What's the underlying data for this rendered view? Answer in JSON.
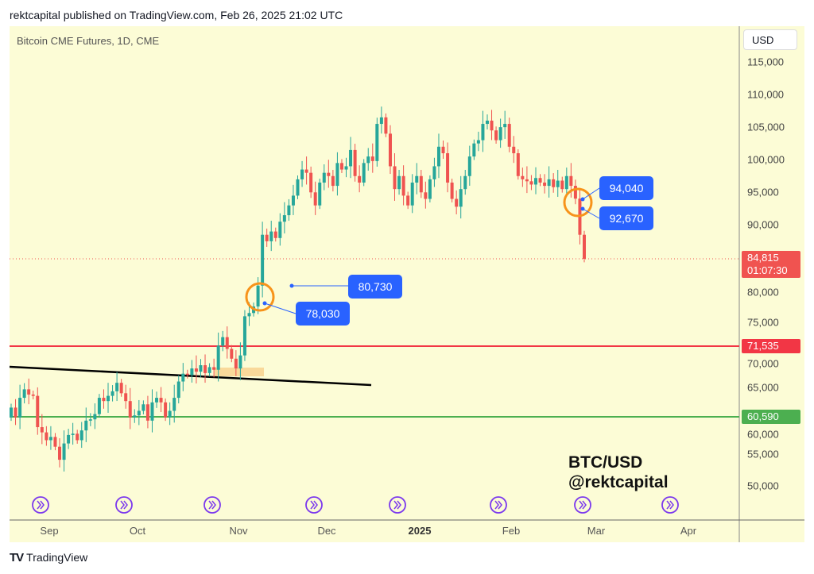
{
  "header": {
    "published": "rektcapital published on TradingView.com, Feb 26, 2025 21:02 UTC"
  },
  "symbol": "Bitcoin CME Futures, 1D, CME",
  "currency_button": "USD",
  "watermark": {
    "line1": "BTC/USD",
    "line2": "@rektcapital"
  },
  "footer": {
    "brand": "TradingView"
  },
  "price_axis": {
    "ticks": [
      "115,000",
      "110,000",
      "105,000",
      "100,000",
      "95,000",
      "90,000",
      "80,000",
      "75,000",
      "70,000",
      "65,000",
      "60,000",
      "55,000",
      "50,000"
    ]
  },
  "time_axis": {
    "labels": [
      "Sep",
      "Oct",
      "Nov",
      "Dec",
      "2025",
      "Feb",
      "Mar",
      "Apr"
    ]
  },
  "price_labels": {
    "current": {
      "price": "84,815",
      "countdown": "01:07:30",
      "color": "#f05350"
    },
    "resistance": {
      "price": "71,535",
      "color": "#f23645"
    },
    "support": {
      "price": "60,590",
      "color": "#4caf50"
    }
  },
  "annotations": [
    "80,730",
    "78,030",
    "94,040",
    "92,670"
  ],
  "colors": {
    "up": "#26a69a",
    "down": "#ef5350",
    "background": "#fcfcd6",
    "annotation": "#2962ff",
    "circle": "#f7931a",
    "event_icon": "#7c3aed"
  },
  "chart_data": {
    "type": "candlestick",
    "title": "Bitcoin CME Futures, 1D, CME",
    "ylim": [
      45000,
      117000
    ],
    "x_labels": [
      "Sep",
      "Oct",
      "Nov",
      "Dec",
      "2025",
      "Feb",
      "Mar",
      "Apr"
    ],
    "horizontal_lines": [
      71535,
      60590
    ],
    "trendline": [
      68000,
      65600
    ],
    "closes": [
      62000,
      60500,
      63500,
      64800,
      64000,
      63800,
      59000,
      58200,
      57000,
      57500,
      56000,
      54000,
      56500,
      57800,
      58000,
      57000,
      58500,
      60000,
      60200,
      61000,
      63500,
      63000,
      63800,
      64500,
      65800,
      64200,
      63000,
      60500,
      60800,
      61500,
      62500,
      60000,
      62800,
      63500,
      62800,
      60500,
      61500,
      63500,
      66000,
      67200,
      67000,
      68000,
      67500,
      68500,
      67300,
      68200,
      67800,
      71500,
      72800,
      71000,
      69500,
      68000,
      70000,
      76000,
      76500,
      77500,
      80700,
      88500,
      87500,
      89000,
      88000,
      90500,
      91500,
      93000,
      94500,
      97000,
      98500,
      98000,
      95000,
      93000,
      96500,
      98000,
      97500,
      96000,
      99500,
      98500,
      99000,
      101500,
      97500,
      96500,
      99500,
      100500,
      99800,
      105500,
      106500,
      104000,
      99000,
      95500,
      97500,
      94500,
      93000,
      96500,
      97500,
      95000,
      94000,
      97000,
      99000,
      102000,
      101000,
      96500,
      94000,
      92800,
      95500,
      97500,
      100500,
      102500,
      103000,
      105500,
      106000,
      104500,
      103000,
      105000,
      105500,
      102000,
      101000,
      97500,
      97000,
      96700,
      96200,
      97200,
      96500,
      96000,
      97000,
      95800,
      96800,
      95500,
      97500,
      96000,
      94040,
      88500,
      84815
    ]
  }
}
